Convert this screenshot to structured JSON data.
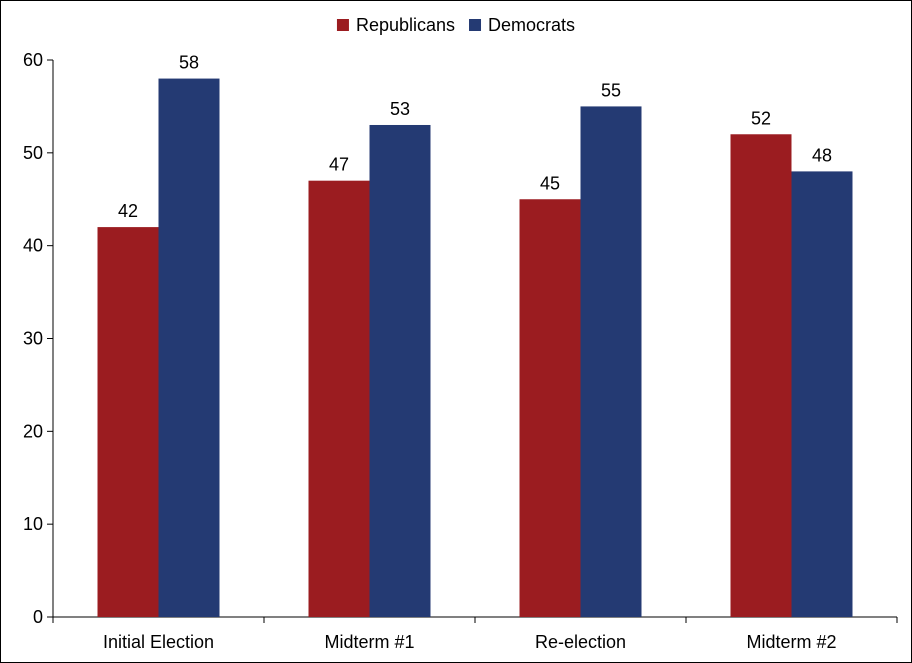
{
  "chart_data": {
    "type": "bar",
    "title": "",
    "xlabel": "",
    "ylabel": "",
    "categories": [
      "Initial Election",
      "Midterm #1",
      "Re-election",
      "Midterm #2"
    ],
    "series": [
      {
        "name": "Republicans",
        "color": "#9b1c20",
        "values": [
          42,
          47,
          45,
          52
        ]
      },
      {
        "name": "Democrats",
        "color": "#243a73",
        "values": [
          58,
          53,
          55,
          48
        ]
      }
    ],
    "ylim": [
      0,
      60
    ],
    "yticks": [
      0,
      10,
      20,
      30,
      40,
      50,
      60
    ],
    "grid": false,
    "legend": {
      "position": "top-center"
    },
    "data_labels": true
  }
}
